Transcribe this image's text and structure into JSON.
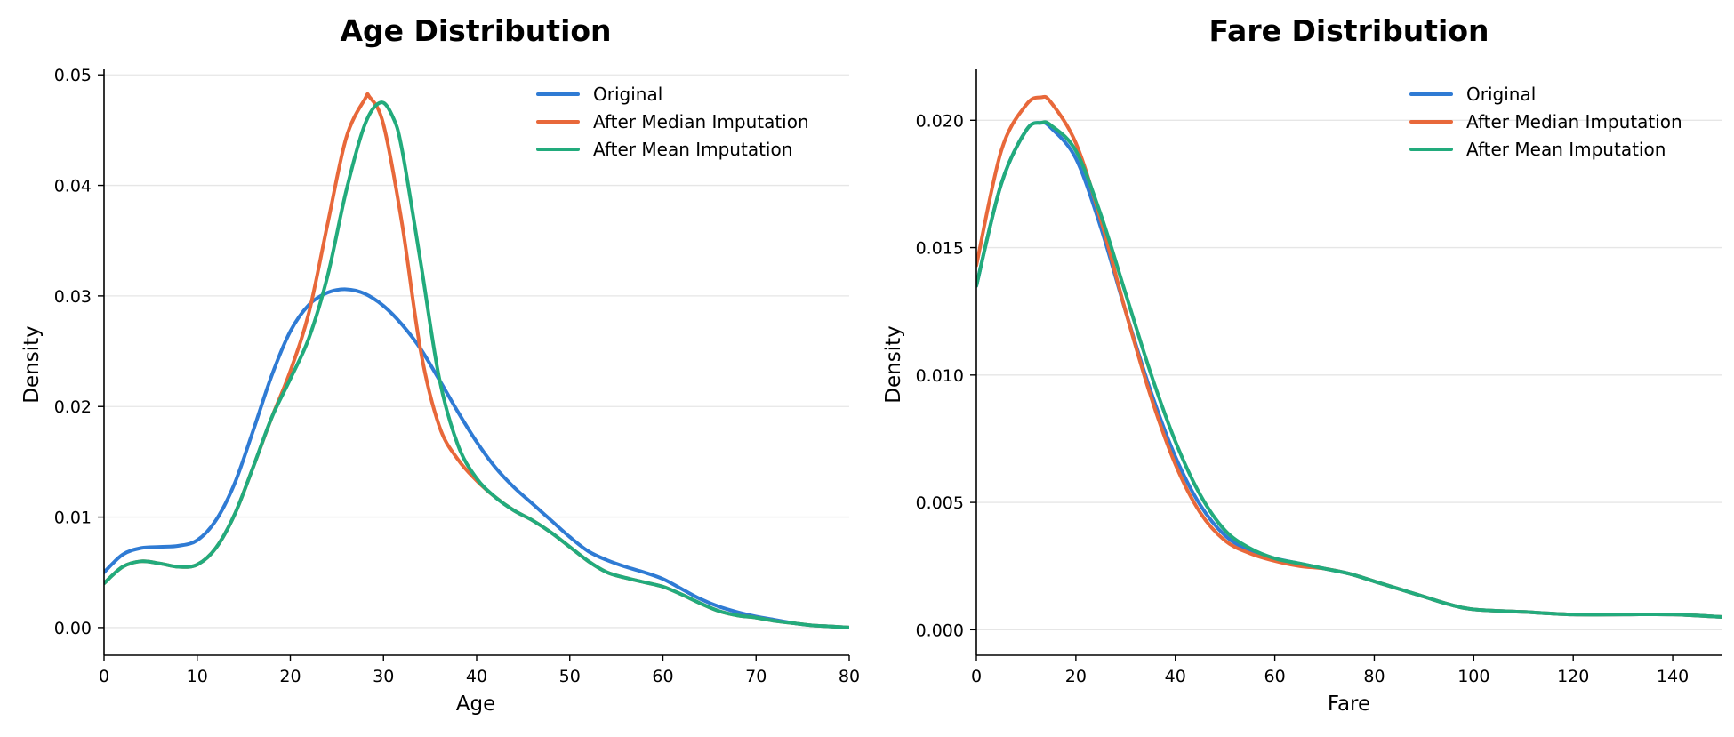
{
  "colors": {
    "original": "#2f7bd4",
    "median": "#e8683a",
    "mean": "#22ab7c",
    "grid": "#e6e6e6",
    "axis": "#000000"
  },
  "chart_data": [
    {
      "type": "line",
      "title": "Age Distribution",
      "xlabel": "Age",
      "ylabel": "Density",
      "xlim": [
        0,
        80
      ],
      "ylim": [
        -0.0025,
        0.0505
      ],
      "xticks": [
        0,
        10,
        20,
        30,
        40,
        50,
        60,
        70,
        80
      ],
      "xtick_labels": [
        "0",
        "10",
        "20",
        "30",
        "40",
        "50",
        "60",
        "70",
        "80"
      ],
      "yticks": [
        0.0,
        0.01,
        0.02,
        0.03,
        0.04,
        0.05
      ],
      "ytick_labels": [
        "0.00",
        "0.01",
        "0.02",
        "0.03",
        "0.04",
        "0.05"
      ],
      "grid": "horizontal",
      "legend_position": "top-right",
      "series": [
        {
          "name": "Original",
          "color_key": "original",
          "x": [
            0,
            2,
            4,
            6,
            8,
            10,
            12,
            14,
            16,
            18,
            20,
            22,
            24,
            26,
            28,
            30,
            32,
            34,
            36,
            38,
            40,
            42,
            44,
            46,
            48,
            50,
            52,
            54,
            56,
            58,
            60,
            62,
            64,
            66,
            68,
            70,
            72,
            74,
            76,
            78,
            80
          ],
          "y": [
            0.005,
            0.0066,
            0.0072,
            0.0073,
            0.0074,
            0.0079,
            0.0097,
            0.013,
            0.0178,
            0.0228,
            0.0268,
            0.0292,
            0.0303,
            0.0306,
            0.0302,
            0.0291,
            0.0274,
            0.0252,
            0.0224,
            0.0195,
            0.0168,
            0.0145,
            0.0127,
            0.0112,
            0.0097,
            0.0082,
            0.0069,
            0.0061,
            0.0055,
            0.005,
            0.0044,
            0.0035,
            0.0026,
            0.0019,
            0.0014,
            0.001,
            0.0007,
            0.0004,
            0.0002,
            0.0001,
            0.0
          ]
        },
        {
          "name": "After Median Imputation",
          "color_key": "median",
          "x": [
            0,
            2,
            4,
            6,
            8,
            10,
            12,
            14,
            16,
            18,
            20,
            22,
            24,
            26,
            28,
            28.5,
            30,
            32,
            34,
            36,
            38,
            40,
            42,
            44,
            46,
            48,
            50,
            52,
            54,
            56,
            58,
            60,
            62,
            64,
            66,
            68,
            70,
            72,
            74,
            76,
            78,
            80
          ],
          "y": [
            0.004,
            0.0055,
            0.006,
            0.0058,
            0.0055,
            0.0057,
            0.0072,
            0.0102,
            0.0145,
            0.019,
            0.0232,
            0.0285,
            0.0365,
            0.0443,
            0.0478,
            0.048,
            0.0455,
            0.0365,
            0.025,
            0.0182,
            0.0152,
            0.0133,
            0.0118,
            0.0106,
            0.0097,
            0.0086,
            0.0073,
            0.006,
            0.005,
            0.0045,
            0.0041,
            0.0037,
            0.003,
            0.0022,
            0.0015,
            0.0011,
            0.0009,
            0.0006,
            0.0004,
            0.0002,
            0.0001,
            0.0
          ]
        },
        {
          "name": "After Mean Imputation",
          "color_key": "mean",
          "x": [
            0,
            2,
            4,
            6,
            8,
            10,
            12,
            14,
            16,
            18,
            20,
            22,
            24,
            26,
            28,
            29.7,
            31,
            32,
            34,
            36,
            38,
            40,
            42,
            44,
            46,
            48,
            50,
            52,
            54,
            56,
            58,
            60,
            62,
            64,
            66,
            68,
            70,
            72,
            74,
            76,
            78,
            80
          ],
          "y": [
            0.004,
            0.0055,
            0.006,
            0.0058,
            0.0055,
            0.0057,
            0.0072,
            0.0102,
            0.0145,
            0.019,
            0.0225,
            0.0262,
            0.0318,
            0.0395,
            0.0455,
            0.0475,
            0.0462,
            0.0432,
            0.033,
            0.0225,
            0.0165,
            0.0135,
            0.0118,
            0.0106,
            0.0097,
            0.0086,
            0.0073,
            0.006,
            0.005,
            0.0045,
            0.0041,
            0.0037,
            0.003,
            0.0022,
            0.0015,
            0.0011,
            0.0009,
            0.0006,
            0.0004,
            0.0002,
            0.0001,
            0.0
          ]
        }
      ]
    },
    {
      "type": "line",
      "title": "Fare Distribution",
      "xlabel": "Fare",
      "ylabel": "Density",
      "xlim": [
        0,
        150
      ],
      "ylim": [
        -0.001,
        0.022
      ],
      "xticks": [
        0,
        20,
        40,
        60,
        80,
        100,
        120,
        140
      ],
      "xtick_labels": [
        "0",
        "20",
        "40",
        "60",
        "80",
        "100",
        "120",
        "140"
      ],
      "yticks": [
        0.0,
        0.005,
        0.01,
        0.015,
        0.02
      ],
      "ytick_labels": [
        "0.000",
        "0.005",
        "0.010",
        "0.015",
        "0.020"
      ],
      "grid": "horizontal",
      "legend_position": "top-right",
      "series": [
        {
          "name": "Original",
          "color_key": "original",
          "x": [
            0,
            5,
            10,
            13,
            15,
            20,
            25,
            30,
            35,
            40,
            45,
            50,
            55,
            60,
            65,
            70,
            75,
            80,
            85,
            90,
            95,
            100,
            110,
            120,
            130,
            140,
            150
          ],
          "y": [
            0.0135,
            0.0175,
            0.0196,
            0.0199,
            0.0197,
            0.0185,
            0.0158,
            0.0125,
            0.0094,
            0.0068,
            0.0049,
            0.0037,
            0.0031,
            0.0028,
            0.0026,
            0.0024,
            0.0022,
            0.0019,
            0.0016,
            0.0013,
            0.001,
            0.0008,
            0.0007,
            0.0006,
            0.0006,
            0.0006,
            0.0005
          ]
        },
        {
          "name": "After Median Imputation",
          "color_key": "median",
          "x": [
            0,
            5,
            10,
            13,
            15,
            20,
            25,
            30,
            35,
            40,
            45,
            50,
            55,
            60,
            65,
            70,
            75,
            80,
            85,
            90,
            95,
            100,
            110,
            120,
            130,
            140,
            150
          ],
          "y": [
            0.0143,
            0.0188,
            0.0206,
            0.0209,
            0.0207,
            0.0191,
            0.0161,
            0.0125,
            0.0092,
            0.0065,
            0.0046,
            0.0035,
            0.003,
            0.0027,
            0.0025,
            0.0024,
            0.0022,
            0.0019,
            0.0016,
            0.0013,
            0.001,
            0.0008,
            0.0007,
            0.0006,
            0.0006,
            0.0006,
            0.0005
          ]
        },
        {
          "name": "After Mean Imputation",
          "color_key": "mean",
          "x": [
            0,
            5,
            10,
            13,
            15,
            20,
            25,
            30,
            35,
            40,
            45,
            50,
            55,
            60,
            65,
            70,
            75,
            80,
            85,
            90,
            95,
            100,
            110,
            120,
            130,
            140,
            150
          ],
          "y": [
            0.0135,
            0.0175,
            0.0196,
            0.0199,
            0.0198,
            0.0188,
            0.0163,
            0.0132,
            0.0101,
            0.0074,
            0.0053,
            0.0039,
            0.0032,
            0.0028,
            0.0026,
            0.0024,
            0.0022,
            0.0019,
            0.0016,
            0.0013,
            0.001,
            0.0008,
            0.0007,
            0.0006,
            0.0006,
            0.0006,
            0.0005
          ]
        }
      ]
    }
  ]
}
